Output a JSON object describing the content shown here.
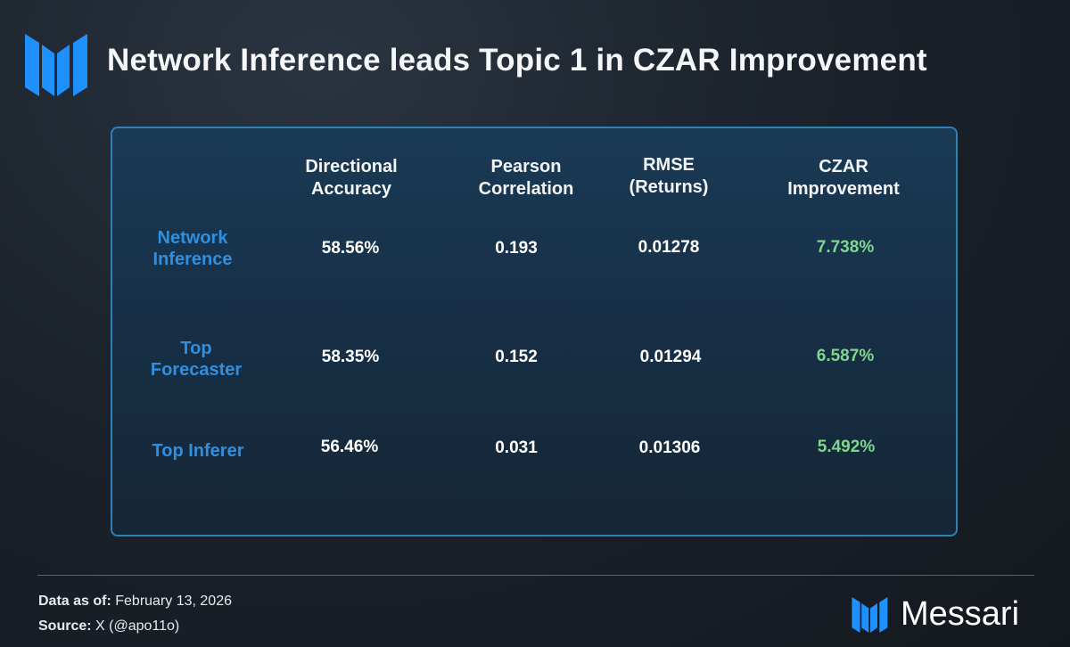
{
  "title": "Network Inference leads Topic 1 in CZAR Improvement",
  "chart_data": {
    "type": "table",
    "columns": [
      "",
      "Directional\nAccuracy",
      "Pearson\nCorrelation",
      "RMSE\n(Returns)",
      "CZAR\nImprovement"
    ],
    "columns_display": [
      [
        "Directional",
        "Accuracy"
      ],
      [
        "Pearson",
        "Correlation"
      ],
      [
        "RMSE",
        "(Returns)"
      ],
      [
        "CZAR",
        "Improvement"
      ]
    ],
    "rows": [
      {
        "label": [
          "Network",
          "Inference"
        ],
        "values": [
          "58.56%",
          "0.193",
          "0.01278",
          "7.738%"
        ]
      },
      {
        "label": [
          "Top",
          "Forecaster"
        ],
        "values": [
          "58.35%",
          "0.152",
          "0.01294",
          "6.587%"
        ]
      },
      {
        "label": [
          "Top Inferer"
        ],
        "values": [
          "56.46%",
          "0.031",
          "0.01306",
          "5.492%"
        ]
      }
    ]
  },
  "footer": {
    "data_as_of_label": "Data as of:",
    "data_as_of_value": " February 13, 2026",
    "source_label": "Source:",
    "source_value": " X (@apo11o)"
  },
  "brand": {
    "name": "Messari"
  },
  "colors": {
    "row_label": "#2f8fe0",
    "czar_value": "#7fd68d",
    "panel_border": "#2f7fb8",
    "logo_blue": "#1e90ff"
  }
}
